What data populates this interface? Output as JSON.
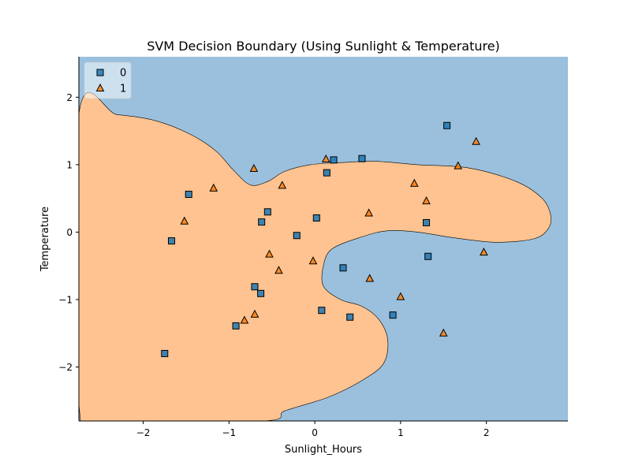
{
  "chart_data": {
    "type": "scatter",
    "title": "SVM Decision Boundary (Using Sunlight & Temperature)",
    "xlabel": "Sunlight_Hours",
    "ylabel": "Temperature",
    "xlim": [
      -2.75,
      2.95
    ],
    "ylim": [
      -2.8,
      2.6
    ],
    "x_ticks": [
      -2,
      -1,
      0,
      1,
      2
    ],
    "y_ticks": [
      -2,
      -1,
      0,
      1,
      2
    ],
    "x_tick_labels": [
      "−2",
      "−1",
      "0",
      "1",
      "2"
    ],
    "y_tick_labels": [
      "−2",
      "−1",
      "0",
      "1",
      "2"
    ],
    "grid": false,
    "legend_position": "top-left",
    "region_colors": {
      "0": "#9bc0dd",
      "1": "#fec390"
    },
    "decision_region_class1_boundary": [
      [
        -2.75,
        1.75
      ],
      [
        -2.3,
        1.74
      ],
      [
        -1.85,
        1.65
      ],
      [
        -1.45,
        1.45
      ],
      [
        -1.15,
        1.2
      ],
      [
        -0.95,
        0.92
      ],
      [
        -0.75,
        0.7
      ],
      [
        -0.55,
        0.75
      ],
      [
        -0.35,
        0.9
      ],
      [
        -0.05,
        1.0
      ],
      [
        0.3,
        1.03
      ],
      [
        0.7,
        1.05
      ],
      [
        1.2,
        1.0
      ],
      [
        1.8,
        0.95
      ],
      [
        2.35,
        0.75
      ],
      [
        2.65,
        0.5
      ],
      [
        2.75,
        0.25
      ],
      [
        2.72,
        0.05
      ],
      [
        2.55,
        -0.1
      ],
      [
        2.1,
        -0.15
      ],
      [
        1.6,
        -0.08
      ],
      [
        1.2,
        0.0
      ],
      [
        0.85,
        0.02
      ],
      [
        0.55,
        -0.07
      ],
      [
        0.2,
        -0.25
      ],
      [
        0.1,
        -0.5
      ],
      [
        0.1,
        -0.8
      ],
      [
        0.3,
        -1.0
      ],
      [
        0.55,
        -1.1
      ],
      [
        0.75,
        -1.3
      ],
      [
        0.85,
        -1.6
      ],
      [
        0.8,
        -1.95
      ],
      [
        0.55,
        -2.2
      ],
      [
        0.15,
        -2.45
      ],
      [
        -0.35,
        -2.65
      ],
      [
        -0.6,
        -2.8
      ],
      [
        -2.4,
        -2.8
      ],
      [
        -2.75,
        -2.55
      ]
    ],
    "series": [
      {
        "name": "0",
        "marker": "square",
        "color": "#1f77b4",
        "points": [
          [
            -1.75,
            -1.8
          ],
          [
            -1.67,
            -0.13
          ],
          [
            -1.47,
            0.56
          ],
          [
            -0.92,
            -1.39
          ],
          [
            -0.7,
            -0.81
          ],
          [
            -0.63,
            -0.91
          ],
          [
            -0.62,
            0.15
          ],
          [
            -0.55,
            0.3
          ],
          [
            -0.21,
            -0.05
          ],
          [
            0.02,
            0.21
          ],
          [
            0.08,
            -1.16
          ],
          [
            0.14,
            0.88
          ],
          [
            0.22,
            1.07
          ],
          [
            0.33,
            -0.53
          ],
          [
            0.41,
            -1.26
          ],
          [
            0.55,
            1.09
          ],
          [
            0.91,
            -1.23
          ],
          [
            1.3,
            0.14
          ],
          [
            1.32,
            -0.36
          ],
          [
            1.54,
            1.58
          ]
        ]
      },
      {
        "name": "1",
        "marker": "triangle",
        "color": "#ff7f0e",
        "points": [
          [
            -1.52,
            0.16
          ],
          [
            -1.18,
            0.65
          ],
          [
            -0.82,
            -1.31
          ],
          [
            -0.7,
            -1.22
          ],
          [
            -0.71,
            0.94
          ],
          [
            -0.53,
            -0.33
          ],
          [
            -0.42,
            -0.57
          ],
          [
            -0.38,
            0.69
          ],
          [
            -0.02,
            -0.43
          ],
          [
            0.13,
            1.08
          ],
          [
            0.63,
            0.28
          ],
          [
            0.64,
            -0.69
          ],
          [
            1.0,
            -0.96
          ],
          [
            1.16,
            0.72
          ],
          [
            1.3,
            0.46
          ],
          [
            1.5,
            -1.5
          ],
          [
            1.67,
            0.98
          ],
          [
            1.88,
            1.34
          ],
          [
            1.97,
            -0.3
          ]
        ]
      }
    ]
  }
}
